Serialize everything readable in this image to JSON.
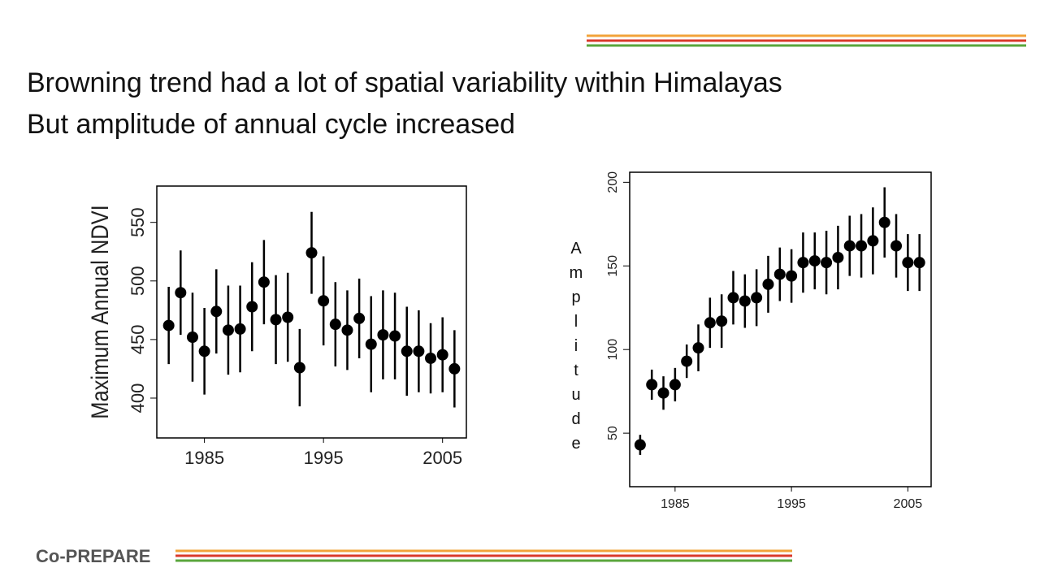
{
  "slide": {
    "lines": [
      "Browning trend had a lot of spatial variability within Himalayas",
      "But amplitude of annual cycle increased"
    ],
    "logo": "Co-PREPARE"
  },
  "chart_data": [
    {
      "type": "errorbar",
      "ylabel": "Maximum Annual NDVI",
      "color": "#000000",
      "x": [
        1982,
        1983,
        1984,
        1985,
        1986,
        1987,
        1988,
        1989,
        1990,
        1991,
        1992,
        1993,
        1994,
        1995,
        1996,
        1997,
        1998,
        1999,
        2000,
        2001,
        2002,
        2003,
        2004,
        2005,
        2006
      ],
      "values": [
        462,
        490,
        452,
        440,
        474,
        458,
        459,
        478,
        499,
        467,
        469,
        426,
        524,
        483,
        463,
        458,
        468,
        446,
        454,
        453,
        440,
        440,
        434,
        437,
        425
      ],
      "errors": [
        33,
        36,
        38,
        37,
        36,
        38,
        37,
        38,
        36,
        38,
        38,
        33,
        35,
        38,
        36,
        34,
        34,
        41,
        38,
        37,
        38,
        35,
        30,
        32,
        33
      ],
      "xlim": [
        1981,
        2007
      ],
      "ylim": [
        366,
        581
      ],
      "xticks": [
        1985,
        1995,
        2005
      ],
      "yticks": [
        400,
        450,
        500,
        550
      ]
    },
    {
      "type": "errorbar",
      "ylabel": "Amplitude",
      "color": "#000000",
      "x": [
        1982,
        1983,
        1984,
        1985,
        1986,
        1987,
        1988,
        1989,
        1990,
        1991,
        1992,
        1993,
        1994,
        1995,
        1996,
        1997,
        1998,
        1999,
        2000,
        2001,
        2002,
        2003,
        2004,
        2005,
        2006
      ],
      "values": [
        43,
        79,
        74,
        79,
        93,
        101,
        116,
        117,
        131,
        129,
        131,
        139,
        145,
        144,
        152,
        153,
        152,
        155,
        162,
        162,
        165,
        176,
        162,
        152,
        152
      ],
      "errors": [
        6,
        9,
        10,
        10,
        10,
        14,
        15,
        16,
        16,
        16,
        17,
        17,
        16,
        16,
        18,
        17,
        19,
        19,
        18,
        19,
        20,
        21,
        19,
        17,
        17
      ],
      "xlim": [
        1981.1,
        2007
      ],
      "ylim": [
        18,
        206
      ],
      "xticks": [
        1985,
        1995,
        2005
      ],
      "yticks": [
        50,
        100,
        150,
        200
      ]
    }
  ]
}
